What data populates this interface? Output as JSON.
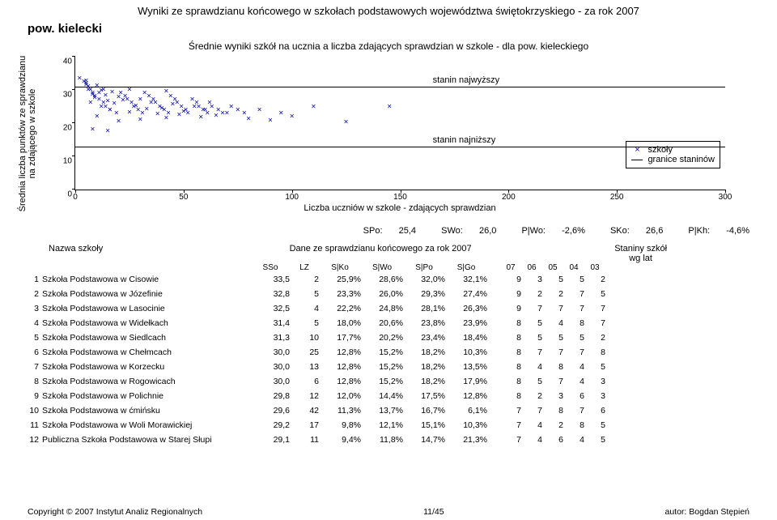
{
  "pageTitle": "Wyniki ze sprawdzianu końcowego w szkołach podstawowych województwa świętokrzyskiego - za rok 2007",
  "region": "pow. kielecki",
  "chartTitle": "Średnie wyniki szkół na ucznia a liczba zdających sprawdzian w szkole - dla pow. kieleckiego",
  "axes": {
    "ylabel": "Średnia liczba punktów ze sprawdzianu\nna zdającego w szkole",
    "xlabel": "Liczba uczniów w szkole - zdających sprawdzian",
    "ymin": 0,
    "ymax": 40,
    "ytick": 10,
    "xmin": 0,
    "xmax": 300,
    "xtick": 50,
    "pointMarker": "×",
    "pointColor": "#0000aa"
  },
  "staninLines": {
    "high": {
      "y": 31,
      "label": "stanin najwyższy"
    },
    "low": {
      "y": 13,
      "label": "stanin najniższy"
    }
  },
  "legend": {
    "schools": "szkoły",
    "bounds": "granice staninów"
  },
  "scatter": [
    [
      2,
      33.5
    ],
    [
      5,
      32.8
    ],
    [
      4,
      32.5
    ],
    [
      5,
      31.4
    ],
    [
      10,
      31.3
    ],
    [
      25,
      30.0
    ],
    [
      13,
      30.0
    ],
    [
      6,
      30.0
    ],
    [
      12,
      29.8
    ],
    [
      42,
      29.6
    ],
    [
      17,
      29.2
    ],
    [
      11,
      29.1
    ],
    [
      8,
      28.5
    ],
    [
      14,
      28.2
    ],
    [
      20,
      27.9
    ],
    [
      9,
      27.5
    ],
    [
      30,
      27.0
    ],
    [
      22,
      26.8
    ],
    [
      15,
      26.5
    ],
    [
      35,
      26.2
    ],
    [
      7,
      26.0
    ],
    [
      18,
      25.8
    ],
    [
      45,
      25.5
    ],
    [
      28,
      25.2
    ],
    [
      55,
      25.0
    ],
    [
      12,
      24.8
    ],
    [
      40,
      24.5
    ],
    [
      33,
      24.2
    ],
    [
      60,
      24.0
    ],
    [
      16,
      23.8
    ],
    [
      50,
      23.5
    ],
    [
      25,
      23.2
    ],
    [
      70,
      23.0
    ],
    [
      38,
      22.8
    ],
    [
      48,
      22.5
    ],
    [
      65,
      22.2
    ],
    [
      10,
      22.0
    ],
    [
      58,
      21.8
    ],
    [
      42,
      21.5
    ],
    [
      80,
      21.2
    ],
    [
      30,
      21.0
    ],
    [
      90,
      20.8
    ],
    [
      20,
      20.5
    ],
    [
      125,
      20.2
    ],
    [
      8,
      18.0
    ],
    [
      15,
      17.5
    ],
    [
      5,
      32
    ],
    [
      6,
      31
    ],
    [
      7,
      30
    ],
    [
      8,
      29
    ],
    [
      9,
      28
    ],
    [
      11,
      27
    ],
    [
      13,
      26
    ],
    [
      14,
      25
    ],
    [
      16,
      24
    ],
    [
      19,
      23
    ],
    [
      21,
      29
    ],
    [
      23,
      28
    ],
    [
      24,
      27
    ],
    [
      26,
      26
    ],
    [
      27,
      25
    ],
    [
      29,
      24
    ],
    [
      31,
      23
    ],
    [
      32,
      29
    ],
    [
      34,
      28
    ],
    [
      36,
      27
    ],
    [
      37,
      26
    ],
    [
      39,
      25
    ],
    [
      41,
      24
    ],
    [
      43,
      23
    ],
    [
      44,
      28
    ],
    [
      46,
      27
    ],
    [
      47,
      26
    ],
    [
      49,
      25
    ],
    [
      51,
      24
    ],
    [
      52,
      23
    ],
    [
      54,
      27
    ],
    [
      56,
      26
    ],
    [
      57,
      25
    ],
    [
      59,
      24
    ],
    [
      61,
      23
    ],
    [
      62,
      26
    ],
    [
      63,
      25
    ],
    [
      66,
      24
    ],
    [
      68,
      23
    ],
    [
      72,
      25
    ],
    [
      75,
      24
    ],
    [
      78,
      23
    ],
    [
      85,
      24
    ],
    [
      95,
      23
    ],
    [
      100,
      22
    ],
    [
      110,
      25
    ],
    [
      145,
      25
    ]
  ],
  "summary": {
    "SPo": {
      "l": "SPo:",
      "v": "25,4"
    },
    "SWo": {
      "l": "SWo:",
      "v": "26,0"
    },
    "PWo": {
      "l": "P|Wo:",
      "v": "-2,6%"
    },
    "SKo": {
      "l": "SKo:",
      "v": "26,6"
    },
    "PKh": {
      "l": "P|Kh:",
      "v": "-4,6%"
    }
  },
  "tableHead": {
    "name": "Nazwa szkoły",
    "data": "Dane ze sprawdzianu końcowego za rok 2007",
    "stanin": "Staniny szkół\nwg lat",
    "cols": {
      "SSo": "SSo",
      "LZ": "LZ",
      "SKo": "S|Ko",
      "SWo": "S|Wo",
      "SPo": "S|Po",
      "SGo": "S|Go"
    },
    "years": [
      "07",
      "06",
      "05",
      "04",
      "03"
    ]
  },
  "rows": [
    {
      "n": "1",
      "name": "Szkoła Podstawowa w Cisowie",
      "SSo": "33,5",
      "LZ": "2",
      "SKo": "25,9%",
      "SWo": "28,6%",
      "SPo": "32,0%",
      "SGo": "32,1%",
      "y": [
        "9",
        "3",
        "5",
        "5",
        "2"
      ]
    },
    {
      "n": "2",
      "name": "Szkoła Podstawowa w Józefinie",
      "SSo": "32,8",
      "LZ": "5",
      "SKo": "23,3%",
      "SWo": "26,0%",
      "SPo": "29,3%",
      "SGo": "27,4%",
      "y": [
        "9",
        "2",
        "2",
        "7",
        "5"
      ]
    },
    {
      "n": "3",
      "name": "Szkoła Podstawowa w Lasocinie",
      "SSo": "32,5",
      "LZ": "4",
      "SKo": "22,2%",
      "SWo": "24,8%",
      "SPo": "28,1%",
      "SGo": "26,3%",
      "y": [
        "9",
        "7",
        "7",
        "7",
        "7"
      ]
    },
    {
      "n": "4",
      "name": "Szkoła Podstawowa w Widełkach",
      "SSo": "31,4",
      "LZ": "5",
      "SKo": "18,0%",
      "SWo": "20,6%",
      "SPo": "23,8%",
      "SGo": "23,9%",
      "y": [
        "8",
        "5",
        "4",
        "8",
        "7"
      ]
    },
    {
      "n": "5",
      "name": "Szkoła Podstawowa w Siedlcach",
      "SSo": "31,3",
      "LZ": "10",
      "SKo": "17,7%",
      "SWo": "20,2%",
      "SPo": "23,4%",
      "SGo": "18,4%",
      "y": [
        "8",
        "5",
        "5",
        "5",
        "2"
      ]
    },
    {
      "n": "6",
      "name": "Szkoła Podstawowa w Chełmcach",
      "SSo": "30,0",
      "LZ": "25",
      "SKo": "12,8%",
      "SWo": "15,2%",
      "SPo": "18,2%",
      "SGo": "10,3%",
      "y": [
        "8",
        "7",
        "7",
        "7",
        "8"
      ]
    },
    {
      "n": "7",
      "name": "Szkoła Podstawowa w Korzecku",
      "SSo": "30,0",
      "LZ": "13",
      "SKo": "12,8%",
      "SWo": "15,2%",
      "SPo": "18,2%",
      "SGo": "13,5%",
      "y": [
        "8",
        "4",
        "8",
        "4",
        "5"
      ]
    },
    {
      "n": "8",
      "name": "Szkoła Podstawowa w Rogowicach",
      "SSo": "30,0",
      "LZ": "6",
      "SKo": "12,8%",
      "SWo": "15,2%",
      "SPo": "18,2%",
      "SGo": "17,9%",
      "y": [
        "8",
        "5",
        "7",
        "4",
        "3"
      ]
    },
    {
      "n": "9",
      "name": "Szkoła Podstawowa w Polichnie",
      "SSo": "29,8",
      "LZ": "12",
      "SKo": "12,0%",
      "SWo": "14,4%",
      "SPo": "17,5%",
      "SGo": "12,8%",
      "y": [
        "8",
        "2",
        "3",
        "6",
        "3"
      ]
    },
    {
      "n": "10",
      "name": "Szkoła Podstawowa w ćmińsku",
      "SSo": "29,6",
      "LZ": "42",
      "SKo": "11,3%",
      "SWo": "13,7%",
      "SPo": "16,7%",
      "SGo": "6,1%",
      "y": [
        "7",
        "7",
        "8",
        "7",
        "6"
      ]
    },
    {
      "n": "11",
      "name": "Szkoła Podstawowa w Woli Morawickiej",
      "SSo": "29,2",
      "LZ": "17",
      "SKo": "9,8%",
      "SWo": "12,1%",
      "SPo": "15,1%",
      "SGo": "10,3%",
      "y": [
        "7",
        "4",
        "2",
        "8",
        "5"
      ]
    },
    {
      "n": "12",
      "name": "Publiczna Szkoła Podstawowa w Starej Słupi",
      "SSo": "29,1",
      "LZ": "11",
      "SKo": "9,4%",
      "SWo": "11,8%",
      "SPo": "14,7%",
      "SGo": "21,3%",
      "y": [
        "7",
        "4",
        "6",
        "4",
        "5"
      ]
    }
  ],
  "footer": {
    "copyright": "Copyright © 2007 Instytut Analiz Regionalnych",
    "page": "11/45",
    "author": "autor: Bogdan Stępień"
  }
}
